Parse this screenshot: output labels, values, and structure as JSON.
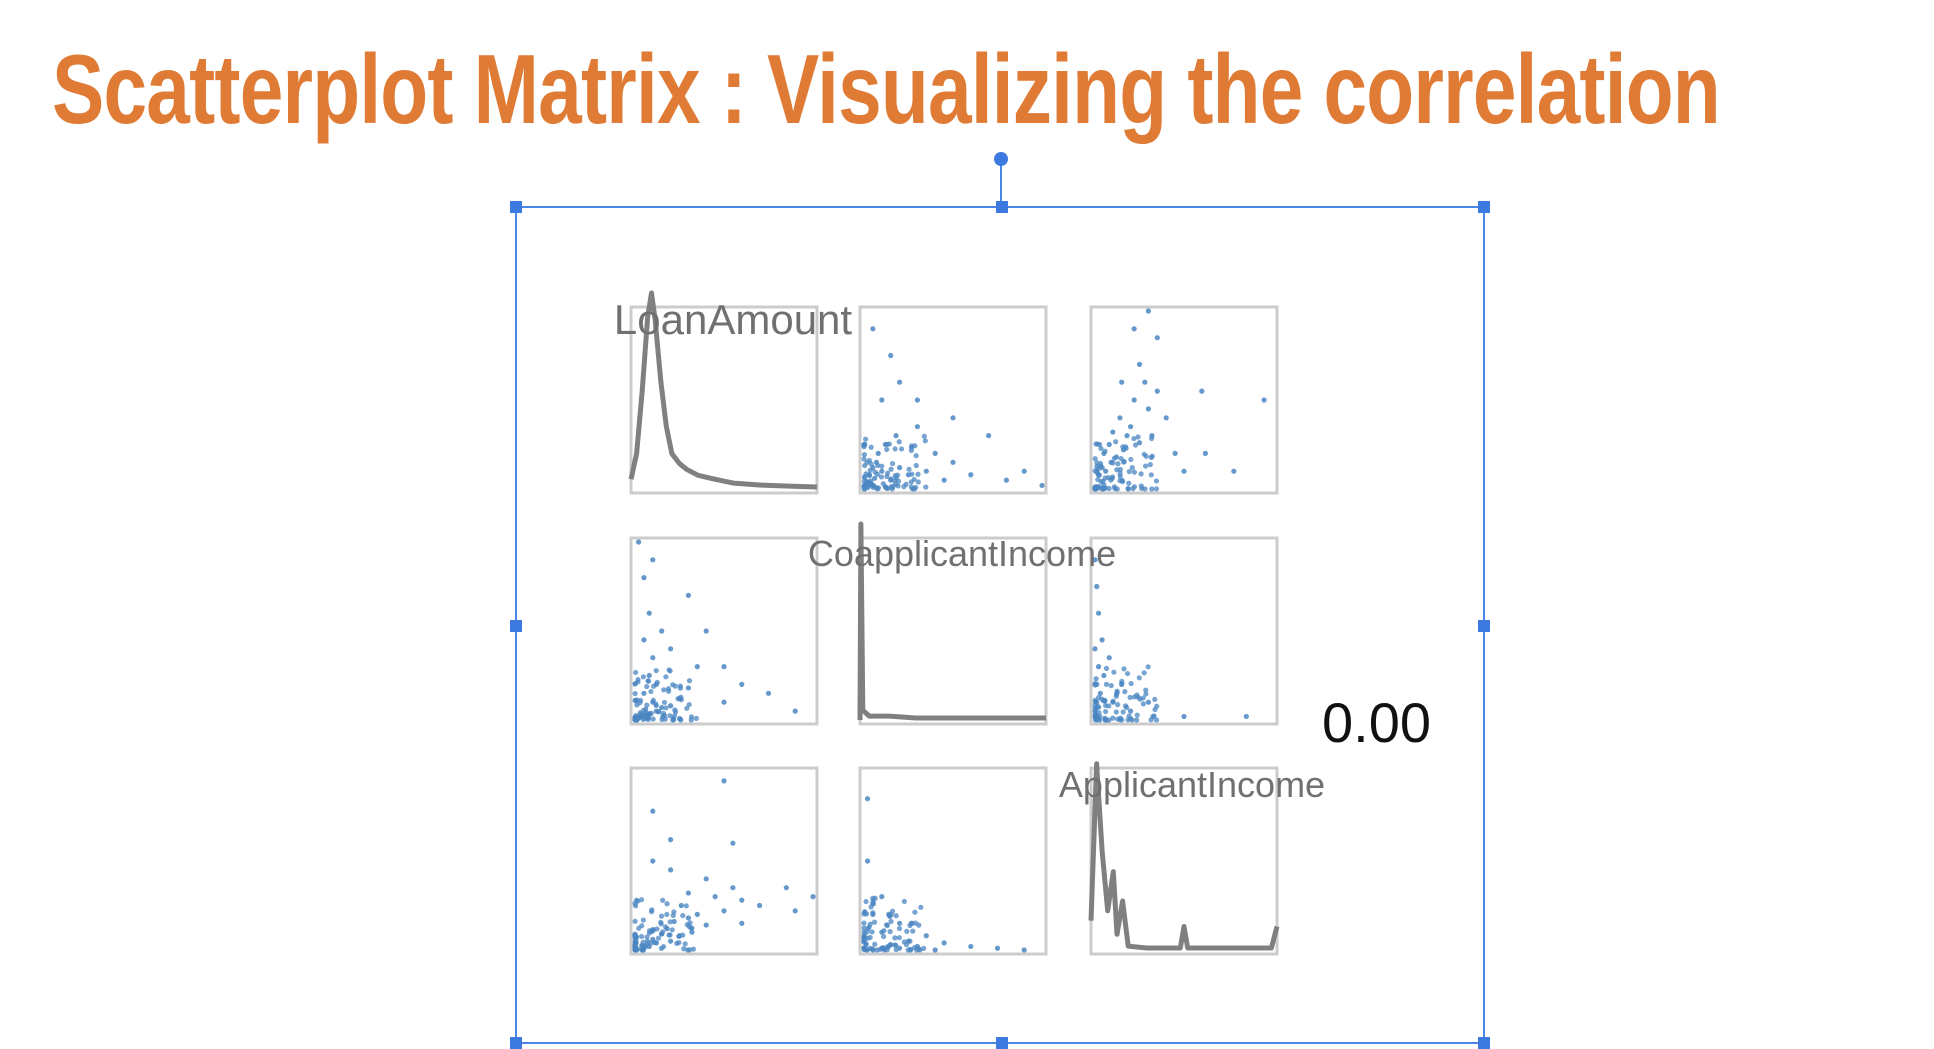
{
  "title": "Scatterplot Matrix : Visualizing the correlation",
  "colors": {
    "title": "#e07b35",
    "points": "#4a86c2",
    "density_line": "#808080",
    "frame": "#cccccc",
    "selection": "#4a86e8"
  },
  "chart_data": {
    "type": "scatter",
    "variables": [
      "LoanAmount",
      "CoapplicantIncome",
      "ApplicantIncome"
    ],
    "diagonal": "density",
    "overlay_text": "0.00",
    "grid": false,
    "legend": "none",
    "densities": {
      "LoanAmount": [
        [
          0,
          0.05
        ],
        [
          0.03,
          0.18
        ],
        [
          0.06,
          0.5
        ],
        [
          0.09,
          0.88
        ],
        [
          0.11,
          1.0
        ],
        [
          0.13,
          0.86
        ],
        [
          0.16,
          0.55
        ],
        [
          0.19,
          0.32
        ],
        [
          0.22,
          0.18
        ],
        [
          0.26,
          0.13
        ],
        [
          0.3,
          0.1
        ],
        [
          0.36,
          0.07
        ],
        [
          0.45,
          0.05
        ],
        [
          0.55,
          0.03
        ],
        [
          0.7,
          0.02
        ],
        [
          0.85,
          0.015
        ],
        [
          1.0,
          0.01
        ]
      ],
      "CoapplicantIncome": [
        [
          0,
          0.0
        ],
        [
          0.005,
          1.0
        ],
        [
          0.015,
          0.05
        ],
        [
          0.05,
          0.02
        ],
        [
          0.15,
          0.02
        ],
        [
          0.3,
          0.01
        ],
        [
          0.5,
          0.01
        ],
        [
          0.75,
          0.01
        ],
        [
          1.0,
          0.01
        ]
      ],
      "ApplicantIncome": [
        [
          0,
          0.15
        ],
        [
          0.03,
          0.95
        ],
        [
          0.06,
          0.5
        ],
        [
          0.09,
          0.2
        ],
        [
          0.12,
          0.4
        ],
        [
          0.14,
          0.08
        ],
        [
          0.17,
          0.25
        ],
        [
          0.2,
          0.02
        ],
        [
          0.3,
          0.01
        ],
        [
          0.48,
          0.01
        ],
        [
          0.5,
          0.12
        ],
        [
          0.52,
          0.01
        ],
        [
          0.7,
          0.01
        ],
        [
          0.97,
          0.01
        ],
        [
          1.0,
          0.12
        ]
      ]
    },
    "scatter_samples": {
      "LoanAmount_vs_ApplicantIncome": [
        [
          0.02,
          0.08
        ],
        [
          0.04,
          0.12
        ],
        [
          0.05,
          0.2
        ],
        [
          0.06,
          0.1
        ],
        [
          0.08,
          0.25
        ],
        [
          0.09,
          0.15
        ],
        [
          0.1,
          0.32
        ],
        [
          0.12,
          0.18
        ],
        [
          0.14,
          0.4
        ],
        [
          0.16,
          0.22
        ],
        [
          0.18,
          0.3
        ],
        [
          0.2,
          0.35
        ],
        [
          0.22,
          0.5
        ],
        [
          0.25,
          0.26
        ],
        [
          0.28,
          0.6
        ],
        [
          0.3,
          0.45
        ],
        [
          0.32,
          0.3
        ],
        [
          0.22,
          0.9
        ],
        [
          0.35,
          0.55
        ],
        [
          0.4,
          0.4
        ],
        [
          0.5,
          0.1
        ],
        [
          0.6,
          0.55
        ],
        [
          0.45,
          0.2
        ],
        [
          0.95,
          0.5
        ],
        [
          0.25,
          0.7
        ],
        [
          0.15,
          0.6
        ],
        [
          0.35,
          0.85
        ],
        [
          0.3,
          1.0
        ],
        [
          0.62,
          0.2
        ],
        [
          0.78,
          0.1
        ]
      ],
      "LoanAmount_vs_CoapplicantIncome": [
        [
          0.01,
          0.02
        ],
        [
          0.02,
          0.04
        ],
        [
          0.03,
          0.08
        ],
        [
          0.04,
          0.03
        ],
        [
          0.05,
          0.12
        ],
        [
          0.06,
          0.06
        ],
        [
          0.07,
          0.15
        ],
        [
          0.08,
          0.2
        ],
        [
          0.1,
          0.1
        ],
        [
          0.12,
          0.25
        ],
        [
          0.15,
          0.05
        ],
        [
          0.18,
          0.3
        ],
        [
          0.2,
          0.12
        ],
        [
          0.25,
          0.08
        ],
        [
          0.3,
          0.35
        ],
        [
          0.35,
          0.1
        ],
        [
          0.4,
          0.2
        ],
        [
          0.45,
          0.05
        ],
        [
          0.5,
          0.15
        ],
        [
          0.6,
          0.08
        ],
        [
          0.7,
          0.3
        ],
        [
          0.8,
          0.05
        ],
        [
          0.9,
          0.1
        ],
        [
          0.2,
          0.6
        ],
        [
          0.1,
          0.5
        ],
        [
          0.3,
          0.5
        ],
        [
          0.05,
          0.9
        ],
        [
          0.15,
          0.75
        ],
        [
          0.5,
          0.4
        ],
        [
          1.0,
          0.02
        ]
      ],
      "CoapplicantIncome_vs_ApplicantIncome": [
        [
          0.0,
          0.05
        ],
        [
          0.01,
          0.1
        ],
        [
          0.01,
          0.2
        ],
        [
          0.02,
          0.3
        ],
        [
          0.0,
          0.4
        ],
        [
          0.02,
          0.6
        ],
        [
          0.03,
          0.15
        ],
        [
          0.05,
          0.25
        ],
        [
          0.08,
          0.35
        ],
        [
          0.1,
          0.1
        ],
        [
          0.15,
          0.2
        ],
        [
          0.2,
          0.05
        ],
        [
          0.3,
          0.1
        ],
        [
          0.5,
          0.02
        ],
        [
          0.85,
          0.02
        ],
        [
          0.0,
          0.9
        ],
        [
          0.01,
          0.75
        ],
        [
          0.04,
          0.45
        ]
      ]
    }
  }
}
